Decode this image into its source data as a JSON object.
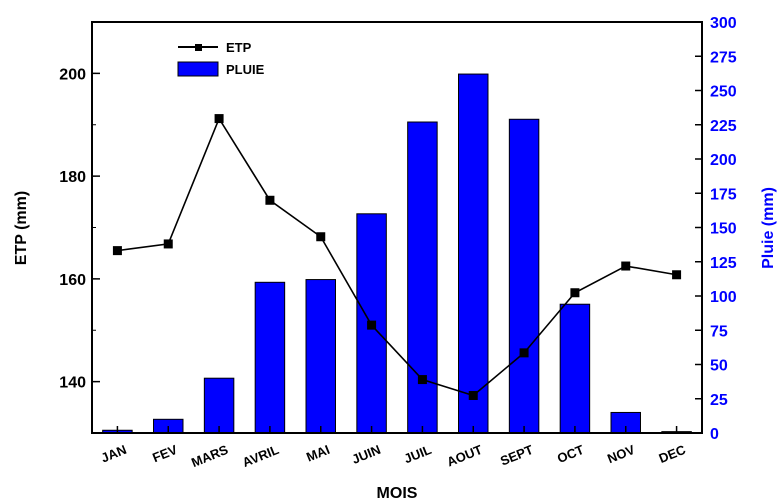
{
  "chart_data": {
    "type": "bar+line",
    "categories": [
      "JAN",
      "FEV",
      "MARS",
      "AVRIL",
      "MAI",
      "JUIN",
      "JUIL",
      "AOUT",
      "SEPT",
      "OCT",
      "NOV",
      "DEC"
    ],
    "series": [
      {
        "name": "ETP",
        "type": "line",
        "axis": "left",
        "values": [
          165.5,
          166.8,
          191.2,
          175.3,
          168.2,
          151.0,
          140.4,
          137.3,
          145.6,
          157.3,
          162.5,
          160.8
        ]
      },
      {
        "name": "PLUIE",
        "type": "bar",
        "axis": "right",
        "values": [
          2,
          10,
          40,
          110,
          112,
          160,
          227,
          262,
          229,
          94,
          15,
          1
        ]
      }
    ],
    "xlabel": "MOIS",
    "ylabel": "ETP (mm)",
    "y2label": "Pluie (mm)",
    "ylim": [
      130,
      210
    ],
    "y2lim": [
      0,
      300
    ],
    "yticks": [
      "140",
      "160",
      "180",
      "200"
    ],
    "y2ticks": [
      "0",
      "25",
      "50",
      "75",
      "100",
      "125",
      "150",
      "175",
      "200",
      "225",
      "250",
      "275",
      "300"
    ],
    "legend_position": "top-left",
    "grid": false,
    "colors": {
      "bar_fill": "#0000FF",
      "bar_edge": "#000000",
      "line": "#000000",
      "right_axis": "#0000FF"
    }
  }
}
